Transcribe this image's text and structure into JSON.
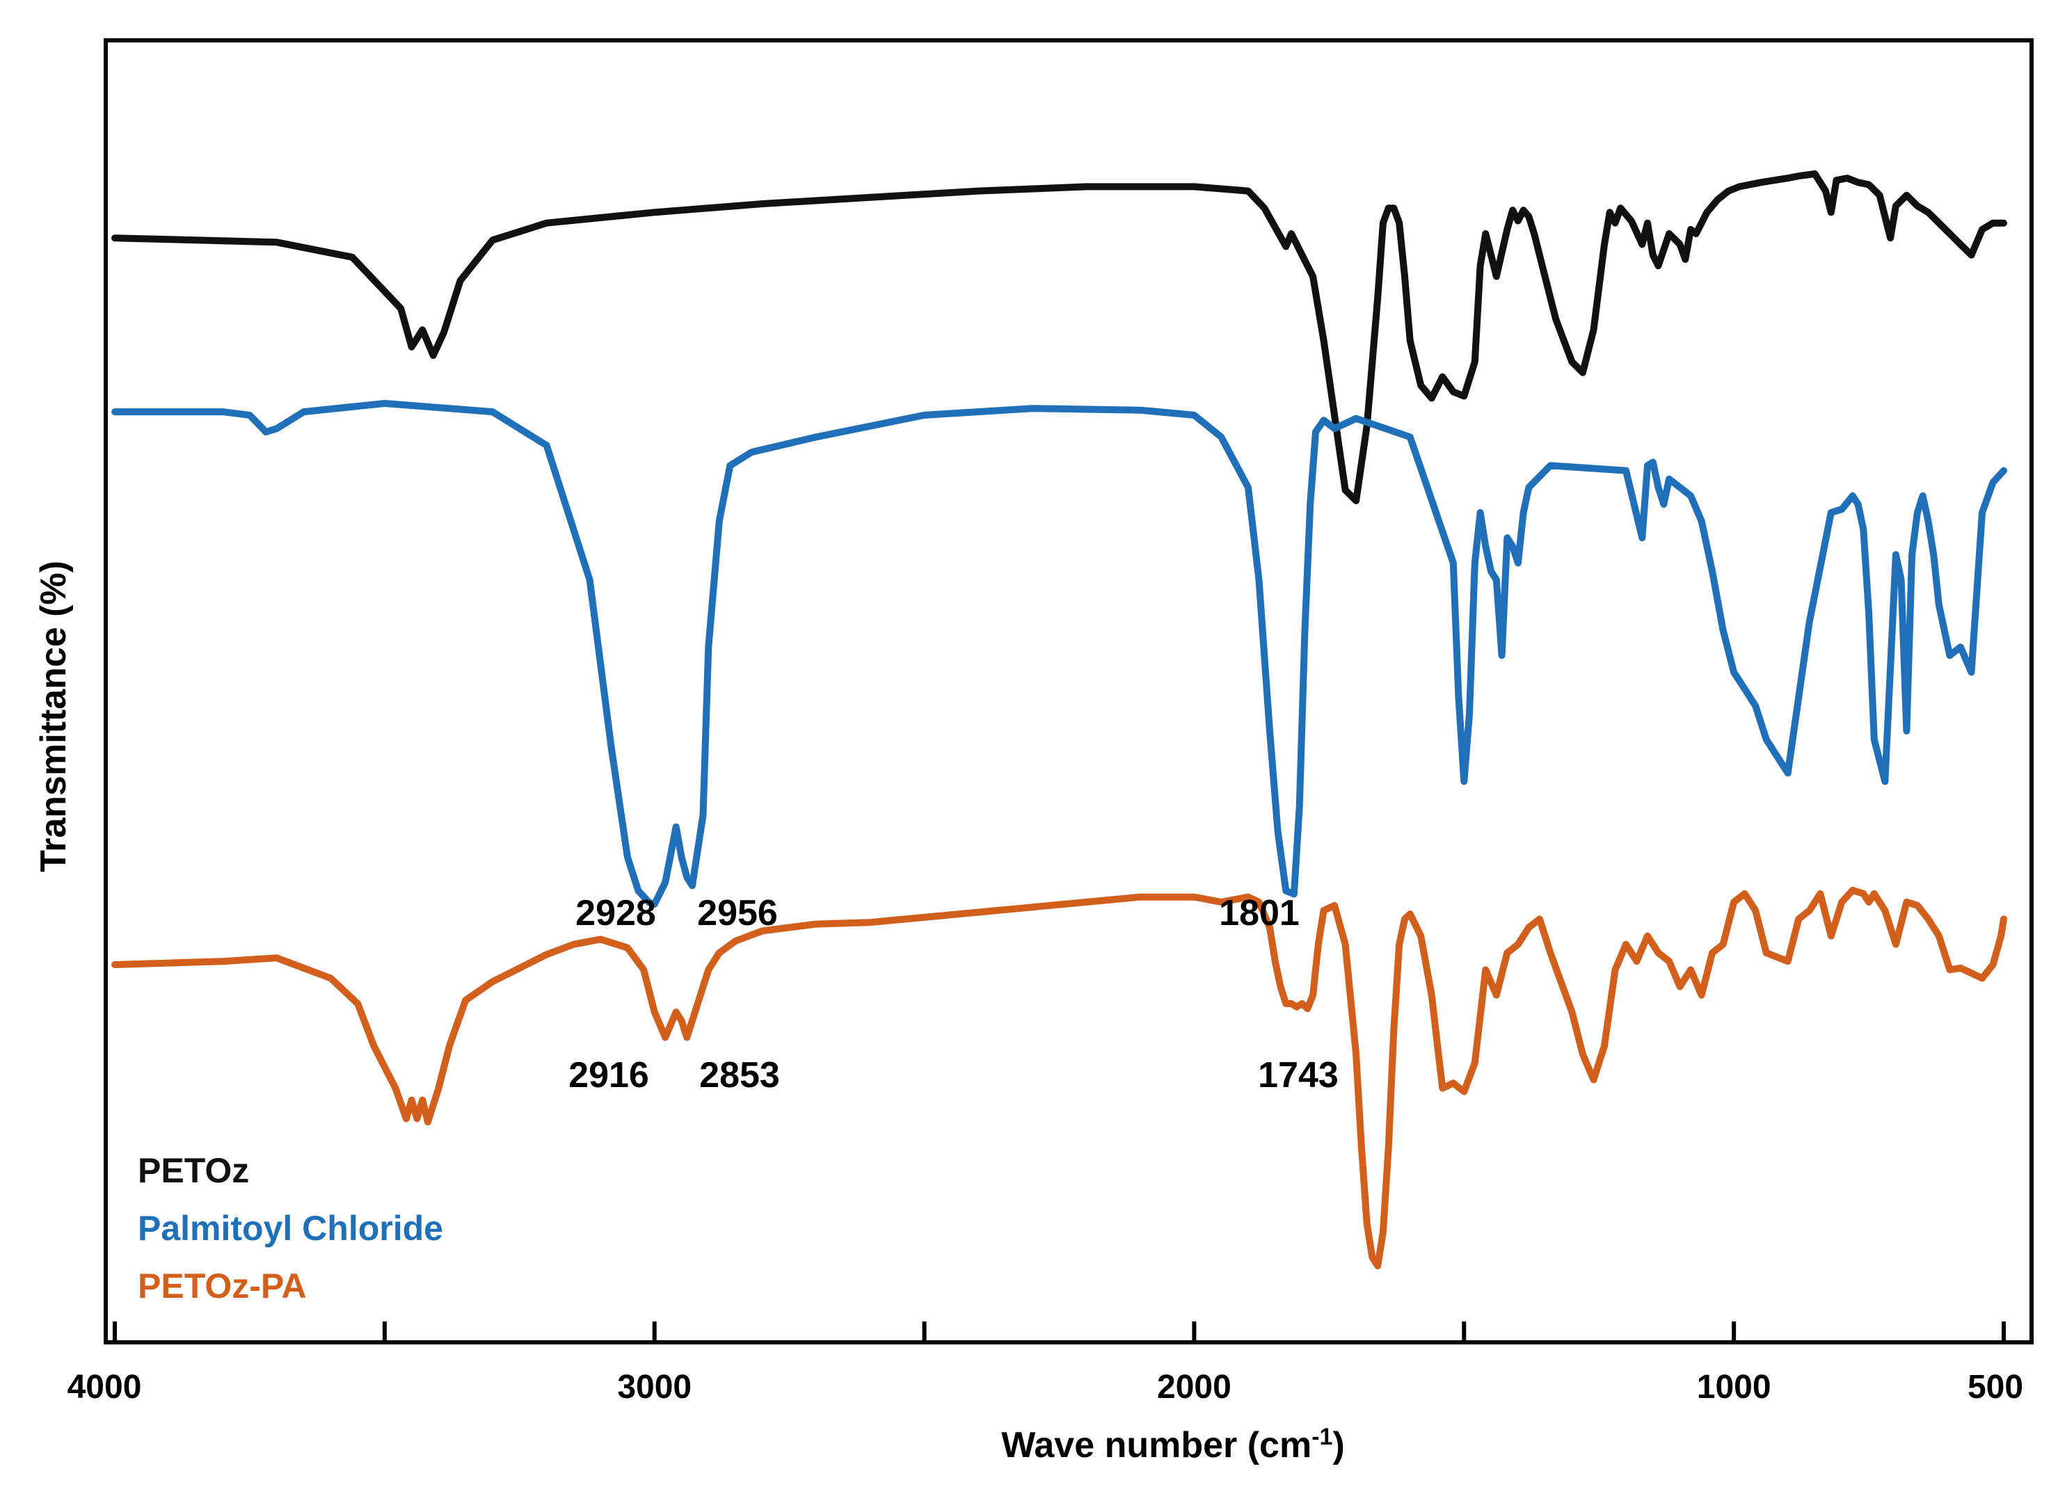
{
  "chart_data": {
    "type": "line",
    "title": "",
    "xlabel": "Wave number (cm",
    "xlabel_sup": "-1",
    "xlabel_end": ")",
    "ylabel": "Transmittance (%)",
    "xlim": [
      4000,
      500
    ],
    "ylim": [
      0,
      100
    ],
    "x_ticks": [
      4000,
      3500,
      3000,
      2500,
      2000,
      1500,
      1000,
      500
    ],
    "x_tick_labels": [
      "4000",
      "3000",
      "2000",
      "1000",
      "500"
    ],
    "x_tick_label_values": [
      4000,
      3000,
      2000,
      1000,
      500
    ],
    "grid": false,
    "legend_position": "bottom-left",
    "series": [
      {
        "name": "PETOz",
        "color": "#111111",
        "x": [
          4000,
          3700,
          3560,
          3470,
          3450,
          3430,
          3410,
          3390,
          3360,
          3300,
          3200,
          3000,
          2800,
          2600,
          2400,
          2200,
          2000,
          1900,
          1870,
          1830,
          1820,
          1810,
          1780,
          1760,
          1740,
          1720,
          1700,
          1680,
          1660,
          1650,
          1640,
          1630,
          1620,
          1610,
          1600,
          1580,
          1560,
          1540,
          1520,
          1500,
          1480,
          1470,
          1460,
          1450,
          1440,
          1420,
          1410,
          1400,
          1390,
          1380,
          1370,
          1350,
          1330,
          1300,
          1280,
          1260,
          1240,
          1230,
          1220,
          1210,
          1190,
          1170,
          1160,
          1150,
          1140,
          1120,
          1100,
          1090,
          1080,
          1070,
          1050,
          1030,
          1010,
          990,
          950,
          900,
          880,
          850,
          830,
          820,
          810,
          790,
          770,
          750,
          730,
          720,
          710,
          700,
          680,
          660,
          640,
          620,
          600,
          580,
          560,
          540,
          520,
          500
        ],
        "y": [
          90.8,
          90.6,
          89.9,
          87.5,
          85.7,
          86.5,
          85.3,
          86.4,
          88.8,
          90.7,
          91.5,
          92.0,
          92.4,
          92.7,
          93.0,
          93.2,
          93.2,
          93.0,
          92.2,
          90.4,
          91.0,
          90.5,
          89.0,
          86.0,
          82.5,
          79.0,
          78.5,
          82.0,
          88.0,
          91.5,
          92.2,
          92.2,
          91.5,
          89.0,
          86.0,
          83.9,
          83.3,
          84.3,
          83.6,
          83.4,
          85.0,
          89.5,
          91.0,
          90.0,
          89.0,
          91.2,
          92.1,
          91.6,
          92.1,
          91.8,
          91.0,
          89.0,
          87.0,
          85.0,
          84.5,
          86.5,
          90.5,
          92.0,
          91.5,
          92.2,
          91.6,
          90.5,
          91.5,
          90.0,
          89.5,
          91.0,
          90.5,
          89.8,
          91.2,
          91.0,
          92.0,
          92.6,
          93.0,
          93.2,
          93.4,
          93.6,
          93.7,
          93.8,
          93.0,
          92.0,
          93.5,
          93.6,
          93.4,
          93.3,
          92.8,
          91.8,
          90.8,
          92.3,
          92.8,
          92.3,
          92.0,
          91.5,
          91.0,
          90.5,
          90.0,
          91.2,
          91.5,
          91.5
        ]
      },
      {
        "name": "Palmitoyl Chloride",
        "color": "#1f6fb9",
        "x": [
          4000,
          3800,
          3750,
          3720,
          3700,
          3650,
          3500,
          3300,
          3200,
          3120,
          3080,
          3050,
          3030,
          3010,
          3000,
          2980,
          2960,
          2950,
          2940,
          2930,
          2910,
          2900,
          2880,
          2860,
          2820,
          2700,
          2500,
          2300,
          2100,
          2000,
          1950,
          1900,
          1880,
          1860,
          1845,
          1830,
          1815,
          1805,
          1795,
          1785,
          1775,
          1760,
          1740,
          1700,
          1600,
          1520,
          1510,
          1500,
          1490,
          1480,
          1470,
          1460,
          1450,
          1440,
          1430,
          1420,
          1410,
          1400,
          1390,
          1380,
          1340,
          1200,
          1170,
          1160,
          1150,
          1140,
          1130,
          1120,
          1100,
          1080,
          1060,
          1040,
          1020,
          1000,
          980,
          960,
          940,
          900,
          860,
          820,
          800,
          780,
          770,
          760,
          750,
          740,
          720,
          700,
          690,
          680,
          670,
          660,
          650,
          640,
          630,
          620,
          600,
          580,
          560,
          540,
          520,
          500
        ],
        "y": [
          82.0,
          82.0,
          81.8,
          80.8,
          81.0,
          82.0,
          82.5,
          82.0,
          80.0,
          72.0,
          62.0,
          55.5,
          53.5,
          52.8,
          52.7,
          54.0,
          57.3,
          55.5,
          54.3,
          53.8,
          58.0,
          68.0,
          75.5,
          78.8,
          79.6,
          80.5,
          81.8,
          82.2,
          82.1,
          81.8,
          80.5,
          77.5,
          72.0,
          63.0,
          57.0,
          53.5,
          53.3,
          58.5,
          69.0,
          76.5,
          80.8,
          81.5,
          81.0,
          81.6,
          80.5,
          73.0,
          65.0,
          60.0,
          64.0,
          73.0,
          76.0,
          74.0,
          72.5,
          72.0,
          67.5,
          74.5,
          74.0,
          73.0,
          76.0,
          77.5,
          78.8,
          78.5,
          74.5,
          78.8,
          79.0,
          77.5,
          76.5,
          78.0,
          77.5,
          77.0,
          75.5,
          72.5,
          69.0,
          66.5,
          65.5,
          64.5,
          62.5,
          60.5,
          69.5,
          76.0,
          76.2,
          77.0,
          76.5,
          75.0,
          70.0,
          62.5,
          60.0,
          73.5,
          72.0,
          63.0,
          73.5,
          76.0,
          77.0,
          75.5,
          73.5,
          70.5,
          67.5,
          68.0,
          66.5,
          76.0,
          77.8,
          78.5
        ]
      },
      {
        "name": "PETOz-PA",
        "color": "#d35f1c",
        "x": [
          4000,
          3800,
          3700,
          3600,
          3550,
          3520,
          3480,
          3460,
          3450,
          3440,
          3430,
          3420,
          3400,
          3380,
          3350,
          3300,
          3200,
          3150,
          3100,
          3050,
          3020,
          3000,
          2980,
          2960,
          2950,
          2940,
          2920,
          2900,
          2880,
          2850,
          2800,
          2700,
          2600,
          2500,
          2400,
          2300,
          2200,
          2100,
          2000,
          1950,
          1900,
          1880,
          1860,
          1850,
          1840,
          1830,
          1820,
          1810,
          1800,
          1790,
          1780,
          1770,
          1760,
          1740,
          1720,
          1700,
          1690,
          1680,
          1670,
          1660,
          1650,
          1640,
          1630,
          1620,
          1610,
          1600,
          1580,
          1560,
          1540,
          1520,
          1500,
          1480,
          1460,
          1440,
          1420,
          1400,
          1380,
          1360,
          1340,
          1300,
          1280,
          1260,
          1240,
          1220,
          1200,
          1180,
          1160,
          1140,
          1120,
          1100,
          1080,
          1060,
          1040,
          1020,
          1000,
          980,
          960,
          940,
          900,
          880,
          860,
          840,
          820,
          800,
          780,
          760,
          750,
          740,
          720,
          700,
          680,
          660,
          640,
          620,
          600,
          580,
          560,
          540,
          520,
          505,
          500
        ],
        "y": [
          48.8,
          49.0,
          49.2,
          48.0,
          46.5,
          44.0,
          41.5,
          39.7,
          40.8,
          39.7,
          40.8,
          39.5,
          41.5,
          44.0,
          46.7,
          47.8,
          49.4,
          50.0,
          50.3,
          49.8,
          48.5,
          46.0,
          44.5,
          46.0,
          45.5,
          44.5,
          46.5,
          48.5,
          49.5,
          50.2,
          50.8,
          51.2,
          51.3,
          51.6,
          51.9,
          52.2,
          52.5,
          52.8,
          52.8,
          52.5,
          52.8,
          52.5,
          51.0,
          49.0,
          47.5,
          46.5,
          46.5,
          46.3,
          46.5,
          46.2,
          47.0,
          50.0,
          52.0,
          52.3,
          50.0,
          43.5,
          38.0,
          33.5,
          31.5,
          31.0,
          33.0,
          38.0,
          45.0,
          50.0,
          51.5,
          51.8,
          50.5,
          47.0,
          41.5,
          41.8,
          41.3,
          43.0,
          48.5,
          47.0,
          49.5,
          50.0,
          51.0,
          51.5,
          49.5,
          46.0,
          43.5,
          42.0,
          44.0,
          48.5,
          50.0,
          49.0,
          50.5,
          49.5,
          49.0,
          47.5,
          48.5,
          47.0,
          49.5,
          50.0,
          52.5,
          53.0,
          52.0,
          49.5,
          49.0,
          51.5,
          52.0,
          53.0,
          50.5,
          52.5,
          53.2,
          53.0,
          52.5,
          53.0,
          52.0,
          50.0,
          52.5,
          52.3,
          51.5,
          50.5,
          48.5,
          48.6,
          48.3,
          48.0,
          48.8,
          50.5,
          51.5
        ]
      }
    ],
    "annotations": [
      {
        "text": "2928",
        "series": "Palmitoyl Chloride"
      },
      {
        "text": "2956",
        "series": "Palmitoyl Chloride"
      },
      {
        "text": "1801",
        "series": "Palmitoyl Chloride"
      },
      {
        "text": "2916",
        "series": "PETOz-PA"
      },
      {
        "text": "2853",
        "series": "PETOz-PA"
      },
      {
        "text": "1743",
        "series": "PETOz-PA"
      }
    ]
  }
}
